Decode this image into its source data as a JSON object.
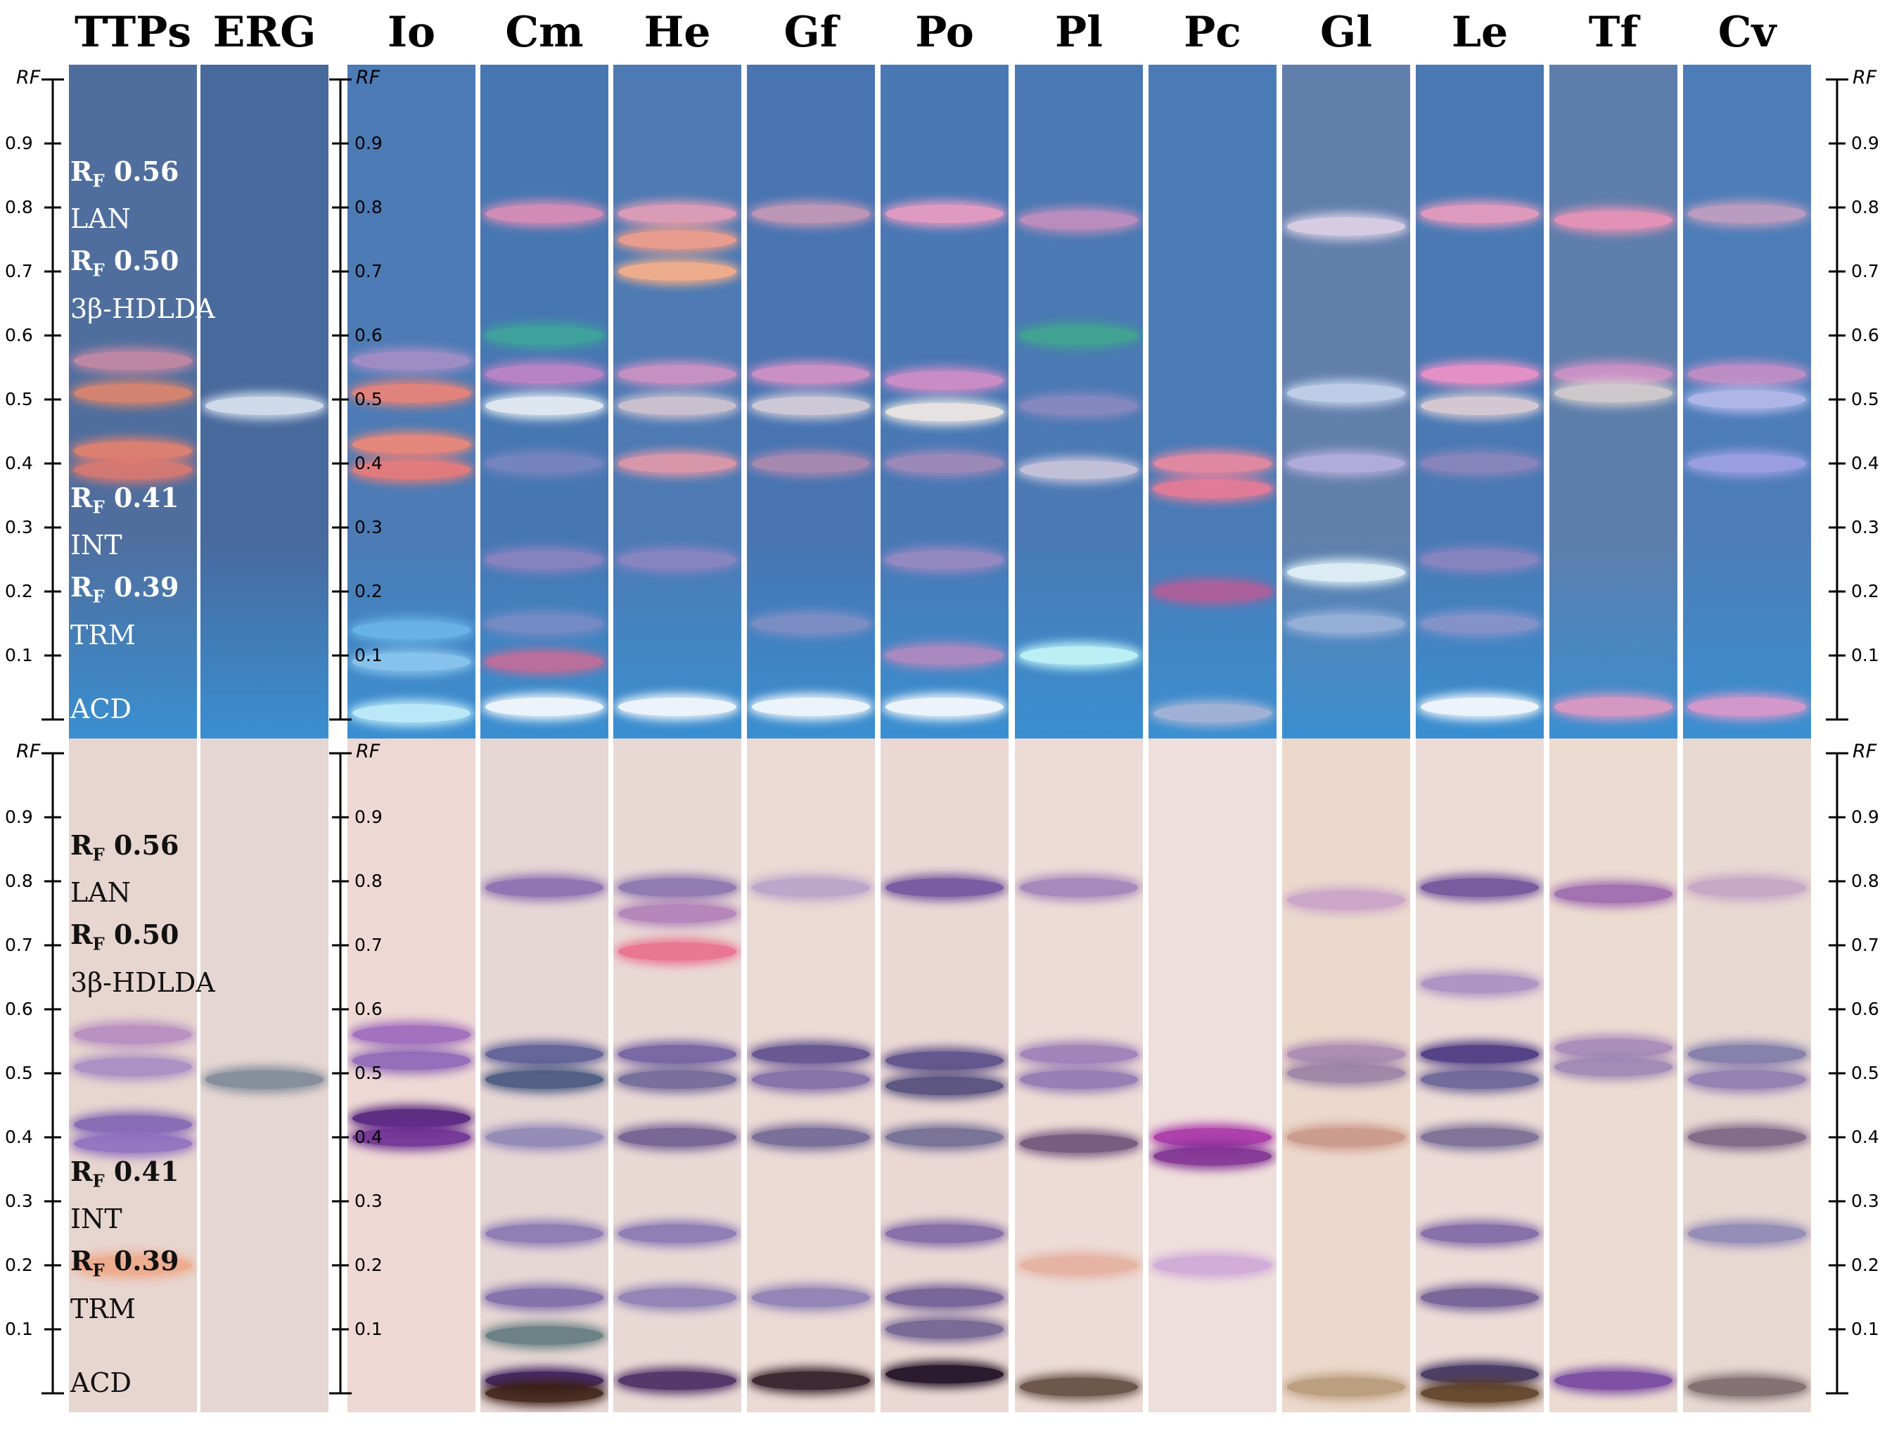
{
  "lanes": [
    {
      "label": "TTPs",
      "uv_bg": "#4f6e9e",
      "vis_bg": "#e7d5cf",
      "uv_bands": [
        [
          0.56,
          "#c98aa5"
        ],
        [
          0.51,
          "#e2876d"
        ],
        [
          0.42,
          "#e9826e"
        ],
        [
          0.39,
          "#e07a70"
        ]
      ],
      "vis_bands": [
        [
          0.56,
          "#b58bc0"
        ],
        [
          0.51,
          "#a68bc3"
        ],
        [
          0.42,
          "#7e63b3"
        ],
        [
          0.39,
          "#8d6cc0"
        ],
        [
          0.2,
          "#f0a98a"
        ]
      ]
    },
    {
      "label": "ERG",
      "uv_bg": "#48699c",
      "vis_bg": "#e5d6d3",
      "uv_bands": [
        [
          0.49,
          "#dde6f2"
        ]
      ],
      "vis_bands": [
        [
          0.49,
          "#7c8896"
        ]
      ]
    },
    {
      "label": "Io",
      "uv_bg": "#4c7bb5",
      "vis_bg": "#eed8d4",
      "uv_bands": [
        [
          0.56,
          "#a78fc7"
        ],
        [
          0.51,
          "#f08476"
        ],
        [
          0.43,
          "#f58976"
        ],
        [
          0.39,
          "#f07c78"
        ],
        [
          0.14,
          "#6bb7ea"
        ],
        [
          0.09,
          "#8ec9f0"
        ],
        [
          0.01,
          "#c8f2fd"
        ]
      ],
      "vis_bands": [
        [
          0.56,
          "#9b68bd"
        ],
        [
          0.52,
          "#8c64b7"
        ],
        [
          0.43,
          "#4e1c7a"
        ],
        [
          0.4,
          "#6b2c91"
        ]
      ]
    },
    {
      "label": "Cm",
      "uv_bg": "#4777b1",
      "vis_bg": "#e6d6d4",
      "uv_bands": [
        [
          0.79,
          "#df8fb7"
        ],
        [
          0.6,
          "#3fa59c"
        ],
        [
          0.54,
          "#c585c8"
        ],
        [
          0.49,
          "#eef2f6"
        ],
        [
          0.4,
          "#7a86c0"
        ],
        [
          0.25,
          "#8d83c2"
        ],
        [
          0.15,
          "#7a8bc5"
        ],
        [
          0.09,
          "#c66d98"
        ],
        [
          0.02,
          "#ffffff"
        ]
      ],
      "vis_bands": [
        [
          0.79,
          "#8a6ab0"
        ],
        [
          0.53,
          "#5a5a95"
        ],
        [
          0.49,
          "#44557f"
        ],
        [
          0.4,
          "#8e84b5"
        ],
        [
          0.25,
          "#8776b2"
        ],
        [
          0.15,
          "#7b6aa8"
        ],
        [
          0.09,
          "#5f7a7d"
        ],
        [
          0.02,
          "#38185a"
        ],
        [
          0.0,
          "#3b1f12"
        ]
      ]
    },
    {
      "label": "He",
      "uv_bg": "#4d7ab3",
      "vis_bg": "#e9d9d5",
      "uv_bands": [
        [
          0.79,
          "#ea9fb7"
        ],
        [
          0.75,
          "#f8a08a"
        ],
        [
          0.7,
          "#ffb288"
        ],
        [
          0.54,
          "#d293c4"
        ],
        [
          0.49,
          "#d6c7d3"
        ],
        [
          0.4,
          "#e79aaa"
        ],
        [
          0.25,
          "#8d85c3"
        ],
        [
          0.02,
          "#ffffff"
        ]
      ],
      "vis_bands": [
        [
          0.79,
          "#8873af"
        ],
        [
          0.75,
          "#b07fb9"
        ],
        [
          0.69,
          "#ea6d8e"
        ],
        [
          0.53,
          "#6f5d9f"
        ],
        [
          0.49,
          "#6e6597"
        ],
        [
          0.4,
          "#6d5b8f"
        ],
        [
          0.25,
          "#8776b2"
        ],
        [
          0.15,
          "#8a7cb2"
        ],
        [
          0.02,
          "#49265f"
        ]
      ]
    },
    {
      "label": "Gf",
      "uv_bg": "#4874b1",
      "vis_bg": "#ebd9d4",
      "uv_bands": [
        [
          0.79,
          "#c99ab7"
        ],
        [
          0.54,
          "#d993c7"
        ],
        [
          0.49,
          "#dbd2da"
        ],
        [
          0.4,
          "#b08bb0"
        ],
        [
          0.15,
          "#8190c5"
        ],
        [
          0.02,
          "#ffffff"
        ]
      ],
      "vis_bands": [
        [
          0.79,
          "#b8a2c9"
        ],
        [
          0.53,
          "#5c4c8c"
        ],
        [
          0.49,
          "#7d6aa5"
        ],
        [
          0.4,
          "#6e6593"
        ],
        [
          0.15,
          "#8a7cb2"
        ],
        [
          0.02,
          "#2d1622"
        ]
      ]
    },
    {
      "label": "Po",
      "uv_bg": "#4978b4",
      "vis_bg": "#ebd8d4",
      "uv_bands": [
        [
          0.79,
          "#f09ec4"
        ],
        [
          0.53,
          "#d98fca"
        ],
        [
          0.48,
          "#f6eee6"
        ],
        [
          0.4,
          "#a48cba"
        ],
        [
          0.25,
          "#9c8ac2"
        ],
        [
          0.1,
          "#b58abf"
        ],
        [
          0.02,
          "#ffffff"
        ]
      ],
      "vis_bands": [
        [
          0.79,
          "#6f4f9d"
        ],
        [
          0.52,
          "#574b87"
        ],
        [
          0.48,
          "#4e4a7a"
        ],
        [
          0.4,
          "#6f6a93"
        ],
        [
          0.25,
          "#7d66a5"
        ],
        [
          0.15,
          "#6d5b94"
        ],
        [
          0.1,
          "#6d6090"
        ],
        [
          0.03,
          "#16081d"
        ]
      ]
    },
    {
      "label": "Pl",
      "uv_bg": "#4a79b3",
      "vis_bg": "#ecdbd6",
      "uv_bands": [
        [
          0.78,
          "#c58fbf"
        ],
        [
          0.6,
          "#41a690"
        ],
        [
          0.49,
          "#8c8ac2"
        ],
        [
          0.39,
          "#cfc8de"
        ],
        [
          0.1,
          "#c7fbfb"
        ]
      ],
      "vis_bands": [
        [
          0.79,
          "#a281b9"
        ],
        [
          0.53,
          "#9c7cb7"
        ],
        [
          0.49,
          "#8e77b1"
        ],
        [
          0.39,
          "#70507a"
        ],
        [
          0.2,
          "#e6b0a0"
        ],
        [
          0.01,
          "#61493d"
        ]
      ]
    },
    {
      "label": "Pc",
      "uv_bg": "#4a7bb6",
      "vis_bg": "#efdfdc",
      "uv_bands": [
        [
          0.4,
          "#f08aa0"
        ],
        [
          0.36,
          "#f07c96"
        ],
        [
          0.2,
          "#b55d98"
        ],
        [
          0.01,
          "#aab6d6"
        ]
      ],
      "vis_bands": [
        [
          0.4,
          "#a732a6"
        ],
        [
          0.37,
          "#7d2c90"
        ],
        [
          0.2,
          "#cfa8d8"
        ]
      ]
    },
    {
      "label": "Gl",
      "uv_bg": "#627fab",
      "vis_bg": "#ecd9cc",
      "uv_bands": [
        [
          0.77,
          "#e2d5ea"
        ],
        [
          0.51,
          "#c9d6ee"
        ],
        [
          0.4,
          "#b9b0dd"
        ],
        [
          0.23,
          "#e9f8fb"
        ],
        [
          0.15,
          "#9cb3da"
        ]
      ],
      "vis_bands": [
        [
          0.77,
          "#c9a2c9"
        ],
        [
          0.53,
          "#a987b2"
        ],
        [
          0.5,
          "#9a80a6"
        ],
        [
          0.4,
          "#c99688"
        ],
        [
          0.01,
          "#b79978"
        ]
      ]
    },
    {
      "label": "Le",
      "uv_bg": "#4a79b3",
      "vis_bg": "#ecdbd6",
      "uv_bands": [
        [
          0.79,
          "#ee9ebf"
        ],
        [
          0.54,
          "#f393c9"
        ],
        [
          0.49,
          "#e2d1d6"
        ],
        [
          0.4,
          "#8e87be"
        ],
        [
          0.25,
          "#8d86c2"
        ],
        [
          0.15,
          "#8b95cb"
        ],
        [
          0.02,
          "#ffffff"
        ]
      ],
      "vis_bands": [
        [
          0.79,
          "#6c4f9a"
        ],
        [
          0.64,
          "#aa8ec3"
        ],
        [
          0.53,
          "#46327f"
        ],
        [
          0.49,
          "#665f93"
        ],
        [
          0.4,
          "#756a93"
        ],
        [
          0.25,
          "#7d66a5"
        ],
        [
          0.15,
          "#6d5b94"
        ],
        [
          0.03,
          "#3c2f5c"
        ],
        [
          0.0,
          "#5b3d21"
        ]
      ]
    },
    {
      "label": "Tf",
      "uv_bg": "#5d7eab",
      "vis_bg": "#ecdbd1",
      "uv_bands": [
        [
          0.78,
          "#f095b8"
        ],
        [
          0.54,
          "#d393c7"
        ],
        [
          0.51,
          "#d8d0cf"
        ],
        [
          0.02,
          "#e59ac3"
        ]
      ],
      "vis_bands": [
        [
          0.78,
          "#9c67ad"
        ],
        [
          0.54,
          "#a687b9"
        ],
        [
          0.51,
          "#9b86b4"
        ],
        [
          0.02,
          "#7343a0"
        ]
      ]
    },
    {
      "label": "Cv",
      "uv_bg": "#4d7db8",
      "vis_bg": "#e8d8d2",
      "uv_bands": [
        [
          0.79,
          "#c5a0c0"
        ],
        [
          0.54,
          "#c98fc7"
        ],
        [
          0.5,
          "#b9bdee"
        ],
        [
          0.4,
          "#a1a2e4"
        ],
        [
          0.02,
          "#e39acb"
        ]
      ],
      "vis_bands": [
        [
          0.79,
          "#c6a2c6"
        ],
        [
          0.53,
          "#7c79a7"
        ],
        [
          0.49,
          "#8d7ab0"
        ],
        [
          0.4,
          "#7a6284"
        ],
        [
          0.25,
          "#8d86b4"
        ],
        [
          0.01,
          "#7a686c"
        ]
      ]
    }
  ],
  "axis": {
    "rf_title": "RF",
    "ticks": [
      "0.1",
      "0.2",
      "0.3",
      "0.4",
      "0.5",
      "0.6",
      "0.7",
      "0.8",
      "0.9"
    ]
  },
  "references": [
    {
      "rf": "RF 0.56",
      "rf_main": "R",
      "rf_sub": "F",
      "rf_value": " 0.56",
      "name": "LAN"
    },
    {
      "rf": "RF 0.50",
      "rf_main": "R",
      "rf_sub": "F",
      "rf_value": " 0.50",
      "name": "3β-HDLDA"
    },
    {
      "rf": "RF 0.41",
      "rf_main": "R",
      "rf_sub": "F",
      "rf_value": " 0.41",
      "name": "INT"
    },
    {
      "rf": "RF 0.39",
      "rf_main": "R",
      "rf_sub": "F",
      "rf_value": " 0.39",
      "name": "TRM"
    },
    {
      "name": "ACD"
    }
  ]
}
